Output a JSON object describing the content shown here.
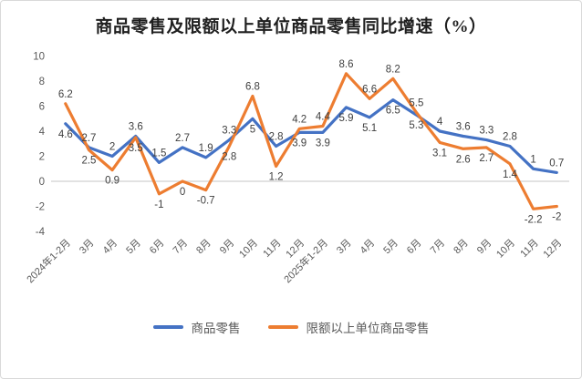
{
  "title": "商品零售及限额以上单位商品零售同比增速（%）",
  "colors": {
    "series_goods_retail": "#4472C4",
    "series_above_limit": "#ED7D31",
    "zero_gridline": "#d9d9d9",
    "axis_text": "#595959",
    "data_label_text": "#404040",
    "frame_border": "#d9d9d9",
    "background": "#ffffff"
  },
  "legend": {
    "position": "bottom"
  },
  "chart_data": {
    "type": "line",
    "title": "商品零售及限额以上单位商品零售同比增速（%）",
    "categories": [
      "2024年1-2月",
      "3月",
      "4月",
      "5月",
      "6月",
      "7月",
      "8月",
      "9月",
      "10月",
      "11月",
      "12月",
      "2025年1-2月",
      "3月",
      "4月",
      "5月",
      "6月",
      "7月",
      "8月",
      "9月",
      "10月",
      "11月",
      "12月"
    ],
    "series": [
      {
        "name": "商品零售",
        "color": "#4472C4",
        "values": [
          4.6,
          2.7,
          2,
          3.6,
          1.5,
          2.7,
          1.9,
          3.3,
          5,
          2.8,
          3.9,
          3.9,
          5.9,
          5.1,
          6.5,
          5.3,
          4,
          3.6,
          3.3,
          2.8,
          1,
          0.7
        ]
      },
      {
        "name": "限额以上单位商品零售",
        "color": "#ED7D31",
        "values": [
          6.2,
          2.5,
          0.9,
          3.5,
          -1,
          0,
          -0.7,
          2.8,
          6.8,
          1.2,
          4.2,
          4.4,
          8.6,
          6.6,
          8.2,
          5.5,
          3.1,
          2.6,
          2.7,
          1.4,
          -2.2,
          -2
        ]
      }
    ],
    "xlabel": "",
    "ylabel": "",
    "ylim": [
      -4,
      10
    ],
    "y_ticks": [
      10,
      8,
      6,
      4,
      2,
      0,
      -2,
      -4
    ],
    "grid": "zero-line-only",
    "data_labels": "shown",
    "legend_position": "bottom"
  }
}
